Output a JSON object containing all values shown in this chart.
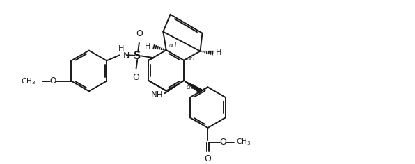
{
  "background_color": "#ffffff",
  "line_color": "#1a1a1a",
  "line_width": 1.4,
  "figsize": [
    5.96,
    2.36
  ],
  "dpi": 100,
  "xlim": [
    0,
    11.0
  ],
  "ylim": [
    -2.6,
    2.6
  ]
}
